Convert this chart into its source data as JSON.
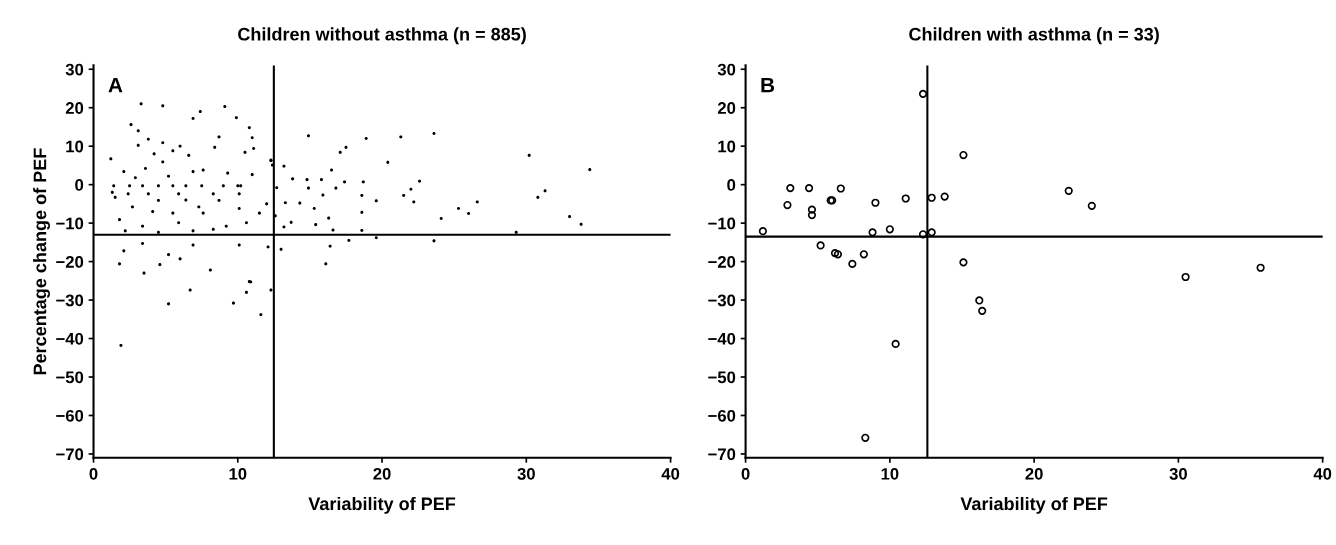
{
  "chart_data": [
    {
      "type": "scatter",
      "title": "Children without asthma (n = 885)",
      "xlabel": "Variability of PEF",
      "ylabel": "Percentage change of PEF",
      "annotations": [
        "A"
      ],
      "marker": "circle",
      "grid": false,
      "xlim": [
        0,
        40
      ],
      "ylim": [
        -71,
        31
      ],
      "xticks": [
        0,
        10,
        20,
        30,
        40
      ],
      "yticks": [
        30,
        20,
        10,
        0,
        -10,
        -20,
        -30,
        -40,
        -50,
        -60,
        -70
      ],
      "ref_lines": [
        {
          "axis": "x",
          "value": 12.5,
          "color": "#000000"
        },
        {
          "axis": "y",
          "value": -13,
          "color": "#000000"
        }
      ],
      "series": [
        {
          "color": "#000000",
          "x": [
            3.3,
            4.8,
            9.1,
            6.9,
            7.4,
            9.9,
            2.6,
            10.8,
            3.1,
            1.2,
            6.0,
            8.7,
            11.1,
            12.3,
            1.4,
            2.5,
            3.4,
            4.5,
            5.5,
            6.4,
            7.5,
            9.0,
            10.0,
            10.2,
            6.4,
            2.1,
            1.8,
            3.5,
            4.6,
            6.0,
            8.1,
            10.8,
            10.1,
            6.9,
            5.2,
            3.4,
            12.1,
            5.2,
            6.7,
            9.7,
            10.6,
            11.6,
            12.3,
            10.9,
            1.9,
            14.9,
            18.9,
            21.3,
            23.6,
            13.2,
            17.1,
            17.5,
            20.4,
            30.2,
            34.4,
            13.8,
            14.8,
            15.8,
            16.5,
            17.4,
            18.7,
            16.8,
            14.9,
            22.6,
            22.0,
            21.5,
            22.2,
            19.6,
            18.6,
            15.9,
            14.3,
            13.3,
            15.3,
            18.6,
            16.3,
            13.7,
            15.4,
            16.6,
            18.6,
            13.2,
            24.1,
            25.3,
            26.0,
            26.6,
            29.3,
            30.8,
            31.3,
            33.0,
            33.8,
            16.1,
            16.4,
            17.7,
            23.6,
            19.6,
            13.0,
            12.3,
            12.4,
            12.7,
            12.6,
            11.0,
            2.1,
            3.6,
            4.8,
            6.6,
            7.6,
            9.3,
            11.0,
            4.2,
            5.5,
            1.5,
            1.8,
            2.7,
            3.4,
            4.5,
            5.5,
            7.3,
            8.7,
            9.2,
            10.6,
            11.5,
            12.0,
            3.8,
            8.3,
            10.1,
            4.5,
            6.9,
            8.3,
            2.2,
            5.9,
            2.9,
            5.2,
            6.9,
            2.4,
            5.9,
            7.6,
            4.1,
            10.1,
            1.3,
            3.1,
            4.8,
            8.4,
            10.5,
            3.8
          ],
          "values": [
            21,
            20.5,
            20.3,
            17.2,
            19,
            17.4,
            15.6,
            14.8,
            14,
            6.7,
            10,
            12.4,
            9.4,
            6.3,
            -0.3,
            -0.3,
            -0.3,
            -0.3,
            -0.3,
            -0.3,
            -0.3,
            -0.3,
            -0.3,
            -0.3,
            -4,
            -17.2,
            -20.6,
            -23,
            -20.8,
            -19.3,
            -22.2,
            -25.2,
            -15.7,
            -15.7,
            -18.2,
            -15.3,
            -16.2,
            -31,
            -27.4,
            -30.8,
            -28,
            -33.8,
            -27.4,
            -25.3,
            -41.8,
            12.7,
            12,
            12.4,
            13.3,
            4.8,
            8.4,
            9.7,
            5.8,
            7.6,
            3.9,
            1.5,
            1.3,
            1.3,
            3.8,
            0.7,
            0.7,
            -0.9,
            -0.9,
            0.9,
            -1.2,
            -2.8,
            -4.5,
            -4.2,
            -2.8,
            -2.7,
            -4.8,
            -4.7,
            -6.2,
            -7.2,
            -8.7,
            -9.8,
            -10.4,
            -11.8,
            -11.9,
            -11,
            -8.8,
            -6.2,
            -7.5,
            -4.5,
            -12.4,
            -3.3,
            -1.6,
            -8.3,
            -10.3,
            -20.6,
            -16,
            -14.5,
            -14.6,
            -13.8,
            -16.8,
            6.3,
            5.1,
            -0.8,
            -8.1,
            12.2,
            3.4,
            4.2,
            5.9,
            7.6,
            3.8,
            3,
            2.6,
            8,
            8.8,
            -3.3,
            -9.1,
            -5.8,
            -10.8,
            -4.1,
            -7.4,
            -5.8,
            -4.1,
            -10.8,
            -9.9,
            -7.4,
            -5,
            -2.4,
            -2.4,
            -2.4,
            -12.4,
            -12,
            -11.6,
            -12,
            -9.9,
            1.8,
            2.2,
            3.4,
            -2.4,
            -2.4,
            -7.4,
            -7,
            -6.2,
            -2,
            10.2,
            10.9,
            9.7,
            8.4,
            11.8
          ]
        }
      ]
    },
    {
      "type": "scatter",
      "title": "Children with asthma (n = 33)",
      "xlabel": "Variability of PEF",
      "annotations": [
        "B"
      ],
      "marker": "circle",
      "grid": false,
      "xlim": [
        0,
        40
      ],
      "ylim": [
        -71,
        31
      ],
      "xticks": [
        0,
        10,
        20,
        30,
        40
      ],
      "yticks": [
        30,
        20,
        10,
        0,
        -10,
        -20,
        -30,
        -40,
        -50,
        -60,
        -70
      ],
      "ref_lines": [
        {
          "axis": "x",
          "value": 12.6,
          "color": "#000000"
        },
        {
          "axis": "y",
          "value": -13.5,
          "color": "#000000"
        }
      ],
      "series": [
        {
          "color": "#000000",
          "x": [
            1.2,
            3.1,
            2.9,
            4.4,
            4.6,
            4.6,
            5.9,
            6.0,
            6.6,
            9.0,
            11.1,
            8.8,
            10.0,
            12.3,
            12.3,
            12.9,
            12.9,
            13.8,
            15.1,
            15.1,
            16.2,
            16.4,
            22.4,
            5.2,
            6.2,
            6.4,
            7.4,
            8.2,
            24.0,
            35.7,
            10.4,
            8.3,
            30.5
          ],
          "values": [
            -12.1,
            -0.9,
            -5.3,
            -0.9,
            -6.5,
            -7.9,
            -4.1,
            -4.1,
            -1.0,
            -4.7,
            -3.6,
            -12.4,
            -11.6,
            23.6,
            -12.9,
            -12.4,
            -3.4,
            -3.1,
            7.7,
            -20.2,
            -30.1,
            -32.8,
            -1.6,
            -15.8,
            -17.8,
            -18.1,
            -20.6,
            -18.1,
            -5.5,
            -21.6,
            -41.4,
            -65.8,
            -24.0
          ]
        }
      ]
    }
  ]
}
